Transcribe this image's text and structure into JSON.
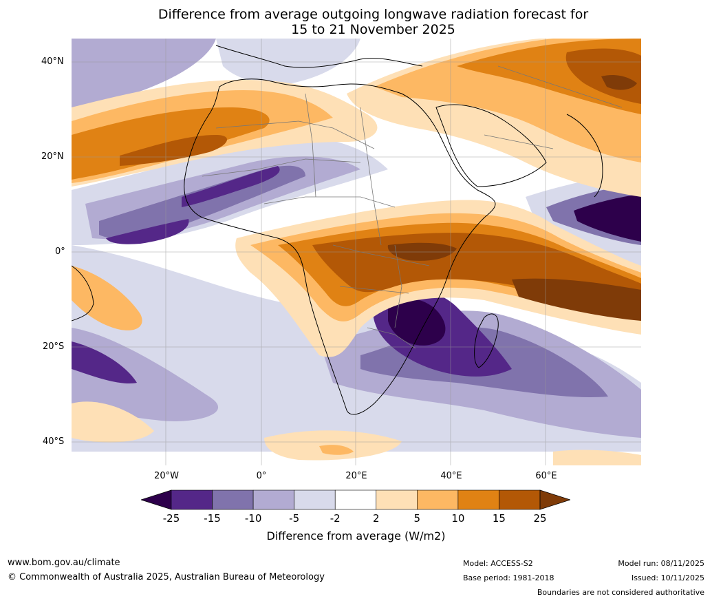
{
  "title_line1": "Difference from average outgoing longwave radiation forecast for",
  "title_line2": "15 to 21 November 2025",
  "lat_labels": [
    "40°N",
    "20°N",
    "0°",
    "20°S",
    "40°S"
  ],
  "lon_labels": [
    "20°W",
    "0°",
    "20°E",
    "40°E",
    "60°E"
  ],
  "colorbar": {
    "title": "Difference from average (W/m2)",
    "tick_labels": [
      "-25",
      "-15",
      "-10",
      "-5",
      "-2",
      "2",
      "5",
      "10",
      "15",
      "25"
    ],
    "colors": [
      "#2d004b",
      "#542788",
      "#8073ac",
      "#b2abd2",
      "#d8daeb",
      "#ffffff",
      "#fee0b6",
      "#fdb863",
      "#e08214",
      "#b35806",
      "#7f3b08"
    ]
  },
  "footer": {
    "website": "www.bom.gov.au/climate",
    "copyright": "© Commonwealth of Australia 2025, Australian Bureau of Meteorology",
    "model": "Model: ACCESS-S2",
    "base_period": "Base period: 1981-2018",
    "model_run": "Model run: 08/11/2025",
    "issued": "Issued: 10/11/2025",
    "disclaimer": "Boundaries are not considered authoritative"
  }
}
